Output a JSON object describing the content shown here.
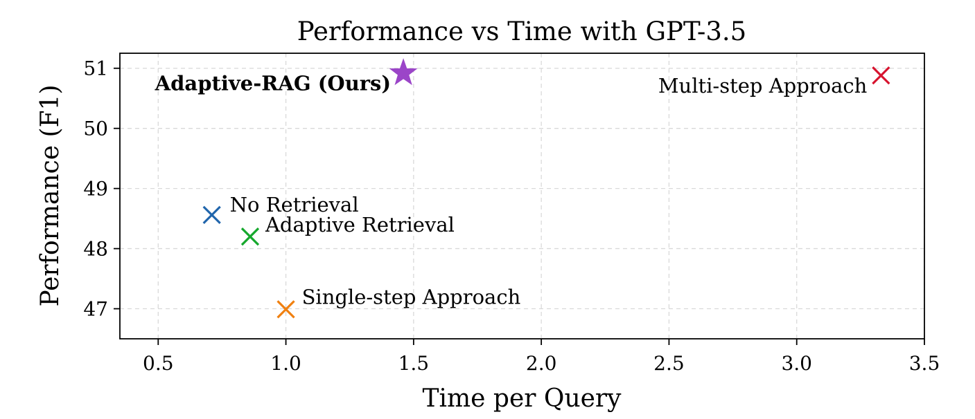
{
  "chart_data": {
    "type": "scatter",
    "title": "Performance vs Time with GPT-3.5",
    "xlabel": "Time per Query",
    "ylabel": "Performance (F1)",
    "xlim": [
      0.35,
      3.5
    ],
    "ylim": [
      46.5,
      51.25
    ],
    "xticks": [
      "0.5",
      "1.0",
      "1.5",
      "2.0",
      "2.5",
      "3.0",
      "3.5"
    ],
    "yticks": [
      "47",
      "48",
      "49",
      "50",
      "51"
    ],
    "grid": true,
    "points": [
      {
        "label": "No Retrieval",
        "x": 0.71,
        "y": 48.56,
        "marker": "x",
        "color": "#2166ac",
        "bold": false
      },
      {
        "label": "Adaptive Retrieval",
        "x": 0.86,
        "y": 48.2,
        "marker": "x",
        "color": "#16a82d",
        "bold": false
      },
      {
        "label": "Single-step Approach",
        "x": 1.0,
        "y": 46.99,
        "marker": "x",
        "color": "#f08010",
        "bold": false
      },
      {
        "label": "Adaptive-RAG (Ours)",
        "x": 1.46,
        "y": 50.92,
        "marker": "star",
        "color": "#9b45c8",
        "bold": true
      },
      {
        "label": "Multi-step Approach",
        "x": 3.33,
        "y": 50.88,
        "marker": "x",
        "color": "#d7142f",
        "bold": false
      }
    ]
  }
}
